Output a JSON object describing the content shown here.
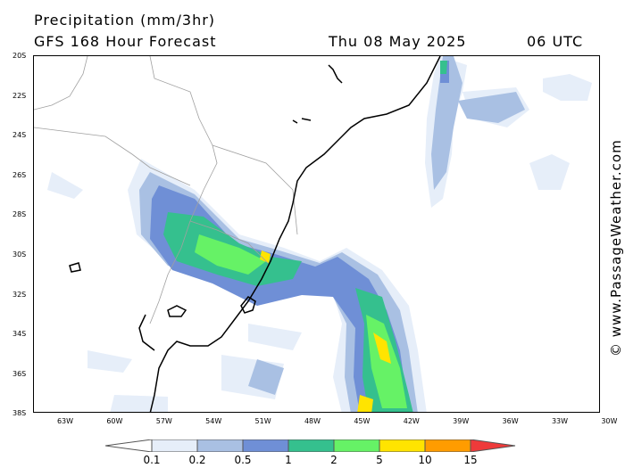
{
  "header": {
    "title": "Precipitation (mm/3hr)",
    "subtitle": "GFS 168 Hour Forecast",
    "datetime": "Thu 08 May 2025",
    "utc": "06 UTC"
  },
  "map": {
    "region": "southern Brazil, Uruguay and northeastern Argentina with the South Atlantic coast",
    "lat_labels": [
      "20S",
      "22S",
      "24S",
      "26S",
      "28S",
      "30S",
      "32S",
      "34S",
      "36S",
      "38S"
    ],
    "lon_labels": [
      "63W",
      "60W",
      "57W",
      "54W",
      "51W",
      "48W",
      "45W",
      "42W",
      "39W",
      "36W",
      "33W",
      "30W"
    ],
    "colors": {
      "land_border": "#a0a0a0",
      "coastline": "#000000"
    }
  },
  "credit": "© www.PassageWeather.com",
  "legend": {
    "colors": [
      "#ffffff",
      "#e6eef9",
      "#a9c0e3",
      "#6f8fd6",
      "#35c08e",
      "#66f266",
      "#ffe400",
      "#ff9c00",
      "#ee3a3a"
    ],
    "labels": [
      "0.1",
      "0.2",
      "0.5",
      "1",
      "2",
      "5",
      "10",
      "15"
    ]
  }
}
